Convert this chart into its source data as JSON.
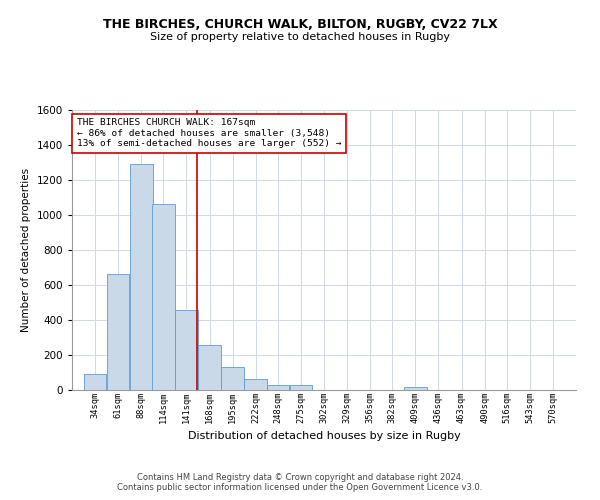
{
  "title": "THE BIRCHES, CHURCH WALK, BILTON, RUGBY, CV22 7LX",
  "subtitle": "Size of property relative to detached houses in Rugby",
  "xlabel": "Distribution of detached houses by size in Rugby",
  "ylabel": "Number of detached properties",
  "footer_line1": "Contains HM Land Registry data © Crown copyright and database right 2024.",
  "footer_line2": "Contains public sector information licensed under the Open Government Licence v3.0.",
  "annotation_line1": "THE BIRCHES CHURCH WALK: 167sqm",
  "annotation_line2": "← 86% of detached houses are smaller (3,548)",
  "annotation_line3": "13% of semi-detached houses are larger (552) →",
  "subject_size": 167,
  "bar_color": "#c9d9e8",
  "bar_edge_color": "#5b9bd5",
  "subject_line_color": "#cc0000",
  "annotation_box_color": "#cc0000",
  "grid_color": "#d0d8e8",
  "categories": [
    "34sqm",
    "61sqm",
    "88sqm",
    "114sqm",
    "141sqm",
    "168sqm",
    "195sqm",
    "222sqm",
    "248sqm",
    "275sqm",
    "302sqm",
    "329sqm",
    "356sqm",
    "382sqm",
    "409sqm",
    "436sqm",
    "463sqm",
    "490sqm",
    "516sqm",
    "543sqm",
    "570sqm"
  ],
  "bin_edges": [
    34,
    61,
    88,
    114,
    141,
    168,
    195,
    222,
    248,
    275,
    302,
    329,
    356,
    382,
    409,
    436,
    463,
    490,
    516,
    543,
    570
  ],
  "values": [
    90,
    665,
    1290,
    1060,
    460,
    255,
    130,
    65,
    30,
    30,
    0,
    0,
    0,
    0,
    15,
    0,
    0,
    0,
    0,
    0
  ],
  "ylim": [
    0,
    1600
  ],
  "yticks": [
    0,
    200,
    400,
    600,
    800,
    1000,
    1200,
    1400,
    1600
  ]
}
